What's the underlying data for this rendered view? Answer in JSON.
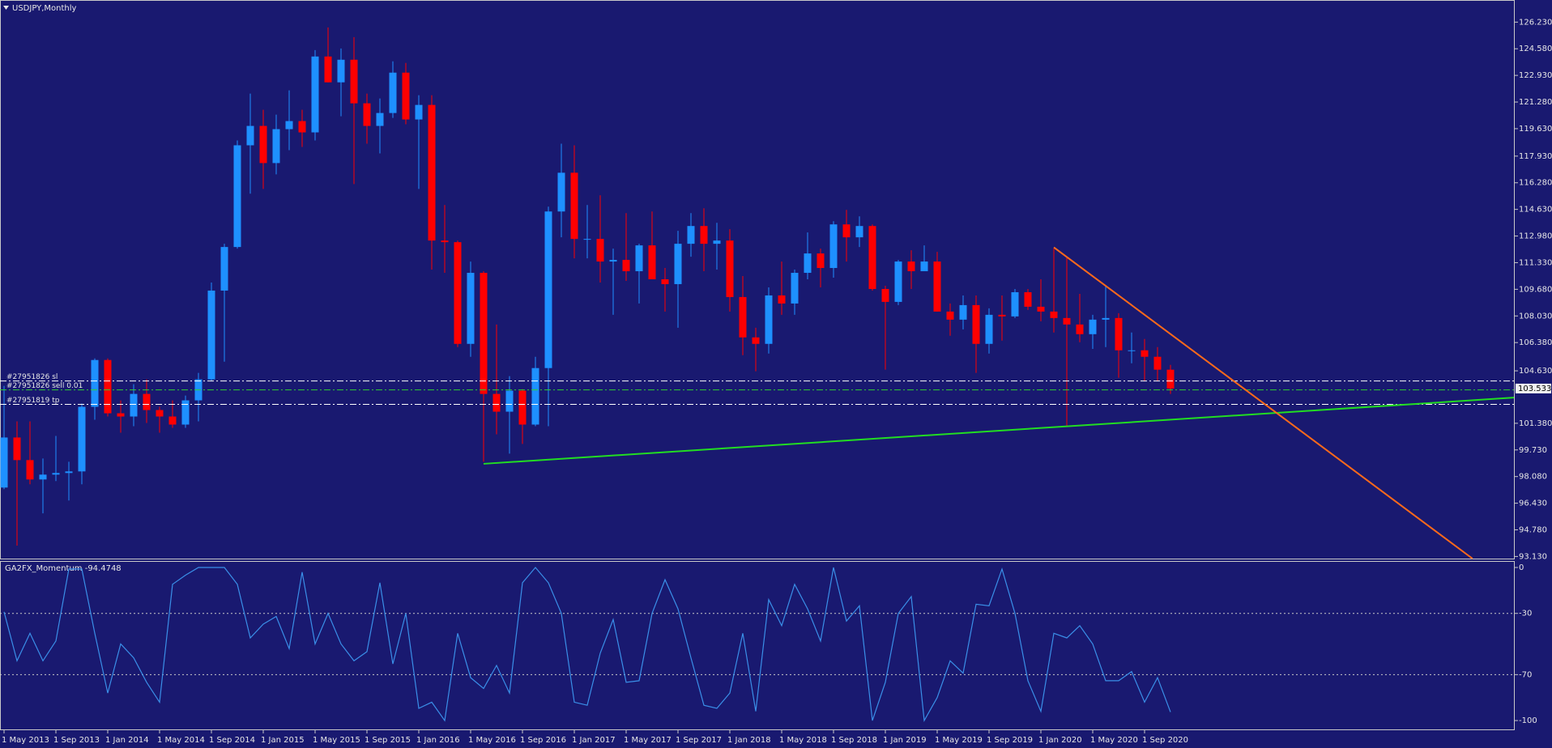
{
  "chart_data": {
    "type": "candlestick",
    "title": "USDJPY,Monthly",
    "categories": [
      "1 May 2013",
      null,
      null,
      null,
      "1 Sep 2013",
      null,
      null,
      null,
      "1 Jan 2014",
      null,
      null,
      null,
      "1 May 2014",
      null,
      null,
      null,
      "1 Sep 2014",
      null,
      null,
      null,
      "1 Jan 2015",
      null,
      null,
      null,
      "1 May 2015",
      null,
      null,
      null,
      "1 Sep 2015",
      null,
      null,
      null,
      "1 Jan 2016",
      null,
      null,
      null,
      "1 May 2016",
      null,
      null,
      null,
      "1 Sep 2016",
      null,
      null,
      null,
      "1 Jan 2017",
      null,
      null,
      null,
      "1 May 2017",
      null,
      null,
      null,
      "1 Sep 2017",
      null,
      null,
      null,
      "1 Jan 2018",
      null,
      null,
      null,
      "1 May 2018",
      null,
      null,
      null,
      "1 Sep 2018",
      null,
      null,
      null,
      "1 Jan 2019",
      null,
      null,
      null,
      "1 May 2019",
      null,
      null,
      null,
      "1 Sep 2019",
      null,
      null,
      null,
      "1 Jan 2020",
      null,
      null,
      null,
      "1 May 2020",
      null,
      null,
      null,
      "1 Sep 2020",
      null,
      null
    ],
    "open": [
      97.4,
      100.5,
      99.1,
      97.9,
      98.2,
      98.3,
      98.4,
      102.4,
      105.3,
      102.0,
      101.8,
      103.2,
      102.2,
      101.8,
      101.3,
      102.8,
      104.1,
      109.6,
      112.3,
      118.6,
      119.8,
      117.5,
      119.6,
      120.1,
      119.4,
      124.1,
      122.5,
      123.9,
      121.2,
      119.8,
      120.6,
      123.1,
      120.2,
      121.1,
      112.7,
      112.6,
      106.3,
      110.7,
      103.2,
      102.1,
      103.4,
      101.3,
      104.8,
      114.5,
      116.9,
      112.8,
      112.8,
      111.4,
      111.5,
      110.8,
      112.4,
      110.3,
      110.0,
      112.5,
      113.6,
      112.5,
      112.7,
      109.2,
      106.7,
      106.3,
      109.3,
      108.8,
      110.7,
      111.9,
      111.0,
      113.7,
      112.9,
      113.6,
      109.7,
      108.9,
      111.4,
      110.8,
      111.4,
      108.3,
      107.8,
      108.7,
      106.3,
      108.1,
      108.0,
      109.5,
      108.6,
      108.3,
      107.9,
      107.5,
      106.9,
      107.8,
      107.9,
      105.9,
      105.9,
      105.5,
      104.7
    ],
    "high": [
      103.7,
      101.5,
      101.5,
      99.2,
      100.6,
      99.0,
      102.6,
      105.4,
      105.4,
      102.8,
      103.8,
      104.1,
      102.4,
      102.8,
      103.1,
      104.5,
      110.1,
      112.5,
      118.9,
      121.8,
      120.8,
      120.5,
      122.0,
      120.8,
      124.5,
      125.9,
      124.6,
      125.3,
      121.8,
      121.5,
      123.8,
      123.7,
      121.7,
      121.7,
      114.9,
      112.7,
      111.4,
      110.8,
      107.5,
      104.3,
      103.5,
      105.5,
      114.8,
      118.7,
      118.6,
      114.9,
      115.5,
      112.2,
      114.4,
      112.5,
      114.5,
      111.0,
      113.3,
      114.4,
      114.7,
      113.8,
      113.4,
      110.5,
      107.3,
      109.8,
      111.4,
      110.9,
      113.2,
      112.2,
      113.9,
      114.6,
      114.2,
      113.7,
      109.9,
      111.5,
      112.1,
      112.4,
      112.0,
      108.8,
      109.3,
      109.3,
      108.5,
      109.3,
      109.7,
      109.7,
      110.3,
      112.2,
      111.7,
      109.4,
      108.1,
      109.9,
      108.2,
      107.0,
      106.6,
      106.1,
      105.0
    ],
    "low": [
      97.3,
      93.8,
      97.6,
      95.8,
      97.8,
      96.6,
      97.6,
      101.6,
      101.8,
      100.8,
      101.2,
      101.4,
      100.8,
      101.1,
      101.1,
      101.5,
      104.0,
      105.2,
      112.2,
      115.6,
      115.9,
      116.8,
      118.3,
      118.5,
      118.9,
      122.5,
      120.4,
      116.2,
      118.7,
      118.1,
      120.3,
      119.9,
      115.9,
      110.9,
      110.7,
      106.1,
      105.5,
      99.0,
      100.7,
      99.5,
      100.1,
      101.2,
      101.2,
      112.9,
      111.6,
      111.6,
      110.1,
      108.1,
      110.2,
      108.8,
      110.6,
      108.3,
      107.3,
      111.7,
      110.8,
      110.9,
      108.3,
      105.6,
      104.6,
      105.7,
      108.1,
      108.1,
      110.3,
      109.8,
      110.4,
      111.4,
      112.3,
      109.6,
      104.7,
      108.7,
      109.7,
      110.8,
      108.3,
      106.8,
      107.2,
      104.5,
      105.7,
      106.5,
      107.9,
      108.4,
      107.7,
      107.0,
      101.2,
      106.4,
      105.99,
      106.1,
      104.2,
      105.1,
      104.0,
      104.0,
      103.2
    ],
    "close": [
      100.5,
      99.1,
      97.9,
      98.2,
      98.3,
      98.4,
      102.4,
      105.3,
      102.0,
      101.8,
      103.2,
      102.2,
      101.8,
      101.3,
      102.8,
      104.1,
      109.6,
      112.3,
      118.6,
      119.8,
      117.5,
      119.6,
      120.1,
      119.4,
      124.1,
      122.5,
      123.9,
      121.2,
      119.8,
      120.6,
      123.1,
      120.2,
      121.1,
      112.7,
      112.6,
      106.3,
      110.7,
      103.2,
      102.1,
      103.4,
      101.3,
      104.8,
      114.5,
      116.9,
      112.8,
      112.8,
      111.4,
      111.5,
      110.8,
      112.4,
      110.3,
      110.0,
      112.5,
      113.6,
      112.5,
      112.7,
      109.2,
      106.7,
      106.3,
      109.3,
      108.8,
      110.7,
      111.9,
      111.0,
      113.7,
      112.9,
      113.6,
      109.7,
      108.9,
      111.4,
      110.8,
      111.4,
      108.3,
      107.8,
      108.7,
      106.3,
      108.1,
      108.0,
      109.5,
      108.6,
      108.3,
      107.9,
      107.5,
      106.9,
      107.8,
      107.9,
      105.9,
      105.9,
      105.5,
      104.7,
      103.533
    ],
    "bull_color": "#1e90ff",
    "bear_color": "#ff0000",
    "ylim": [
      93.0,
      127.6
    ],
    "yticks": [
      {
        "value": 126.23,
        "label": "126.230"
      },
      {
        "value": 124.58,
        "label": "124.580"
      },
      {
        "value": 122.93,
        "label": "122.930"
      },
      {
        "value": 121.28,
        "label": "121.280"
      },
      {
        "value": 119.63,
        "label": "119.630"
      },
      {
        "value": 117.93,
        "label": "117.930"
      },
      {
        "value": 116.28,
        "label": "116.280"
      },
      {
        "value": 114.63,
        "label": "114.630"
      },
      {
        "value": 112.98,
        "label": "112.980"
      },
      {
        "value": 111.33,
        "label": "111.330"
      },
      {
        "value": 109.68,
        "label": "109.680"
      },
      {
        "value": 108.03,
        "label": "108.030"
      },
      {
        "value": 106.38,
        "label": "106.380"
      },
      {
        "value": 104.63,
        "label": "104.630"
      },
      {
        "value": 101.38,
        "label": "101.380"
      },
      {
        "value": 99.73,
        "label": "99.730"
      },
      {
        "value": 98.08,
        "label": "98.080"
      },
      {
        "value": 96.43,
        "label": "96.430"
      },
      {
        "value": 94.78,
        "label": "94.780"
      },
      {
        "value": 93.13,
        "label": "93.130"
      }
    ],
    "order_lines": [
      {
        "name": "#27951826 sl",
        "value": 104.0,
        "color": "#ffffff"
      },
      {
        "name": "#27951826 sell 0.01",
        "value": 103.45,
        "color": "#2fd02f"
      },
      {
        "name": "#27951819 tp",
        "value": 102.55,
        "color": "#ffffff"
      }
    ],
    "trendlines": [
      {
        "color": "#22dd22",
        "x": [
          37,
          116.5
        ],
        "y": [
          98.87,
          102.97
        ]
      },
      {
        "color": "#ff6a1a",
        "x": [
          81,
          113.3
        ],
        "y": [
          112.28,
          93.0
        ]
      }
    ],
    "indicator": {
      "title": "GA2FX_Momentum -94.4748",
      "color": "#3a8fe8",
      "values": [
        -29,
        -61,
        -43,
        -61,
        -48,
        -1,
        -1,
        -43,
        -82,
        -50,
        -59,
        -75,
        -88,
        -11,
        -5,
        0,
        0,
        0,
        -11,
        -46,
        -37,
        -32,
        -53,
        -3,
        -50,
        -30,
        -50,
        -61,
        -55,
        -10,
        -63,
        -30,
        -92,
        -88,
        -100,
        -43,
        -72,
        -79,
        -64,
        -82,
        -10,
        0,
        -10,
        -30,
        -88,
        -90,
        -56,
        -34,
        -75,
        -74,
        -30,
        -8,
        -27,
        -59,
        -90,
        -92,
        -82,
        -43,
        -94,
        -21,
        -38,
        -11,
        -27,
        -48,
        0,
        -35,
        -25,
        -100,
        -75,
        -30,
        -19,
        -100,
        -85,
        -61,
        -69,
        -24,
        -25,
        -1,
        -30,
        -74,
        -94,
        -43,
        -46,
        -38,
        -50,
        -74,
        -74,
        -68,
        -88,
        -72,
        -94.4748
      ],
      "ylim": [
        -106.3,
        3.7
      ],
      "yticks": [
        0,
        -30,
        -70,
        -100
      ],
      "levels": [
        -30,
        -70
      ]
    }
  }
}
